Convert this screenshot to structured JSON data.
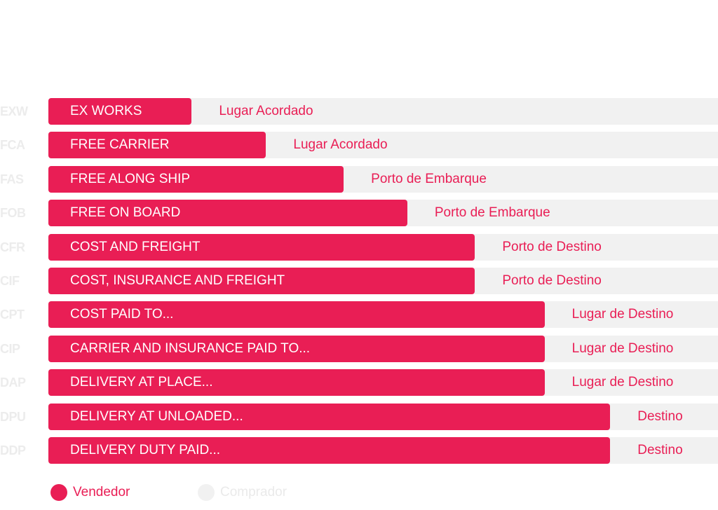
{
  "colors": {
    "seller": "#e91e55",
    "buyer": "#f1f1f1",
    "code": "#ececec",
    "legend_buyer_text": "#eaeaea"
  },
  "legend": [
    {
      "label": "Vendedor",
      "color": "#e91e55",
      "text_color": "#e91e55"
    },
    {
      "label": "Comprador",
      "color": "#f1f1f1",
      "text_color": "#eaeaea"
    }
  ],
  "chart_data": {
    "type": "bar",
    "orientation": "horizontal",
    "stacked": true,
    "xlim": [
      0,
      100
    ],
    "legend_position": "bottom-left",
    "categories": [
      "EXW",
      "FCA",
      "FAS",
      "FOB",
      "CFR",
      "CIF",
      "CPT",
      "CIP",
      "DAP",
      "DPU",
      "DDP"
    ],
    "series": [
      {
        "name": "Vendedor",
        "labels": [
          "EX WORKS",
          "FREE CARRIER",
          "FREE ALONG SHIP",
          "FREE ON BOARD",
          "COST AND FREIGHT",
          "COST, INSURANCE AND FREIGHT",
          "COST PAID TO...",
          "CARRIER AND INSURANCE PAID TO...",
          "DELIVERY AT PLACE...",
          "DELIVERY AT UNLOADED...",
          "DELIVERY DUTY PAID..."
        ],
        "values": [
          21.4,
          32.5,
          44.1,
          53.6,
          63.7,
          63.7,
          74.1,
          74.1,
          74.1,
          83.9,
          83.9
        ]
      },
      {
        "name": "Comprador",
        "labels": [
          "Lugar Acordado",
          "Lugar Acordado",
          "Porto de Embarque",
          "Porto de Embarque",
          "Porto de Destino",
          "Porto de Destino",
          "Lugar de Destino",
          "Lugar de Destino",
          "Lugar de Destino",
          "Destino",
          "Destino"
        ],
        "values": [
          78.6,
          67.5,
          55.9,
          46.4,
          36.3,
          36.3,
          25.9,
          25.9,
          25.9,
          16.1,
          16.1
        ]
      }
    ]
  }
}
